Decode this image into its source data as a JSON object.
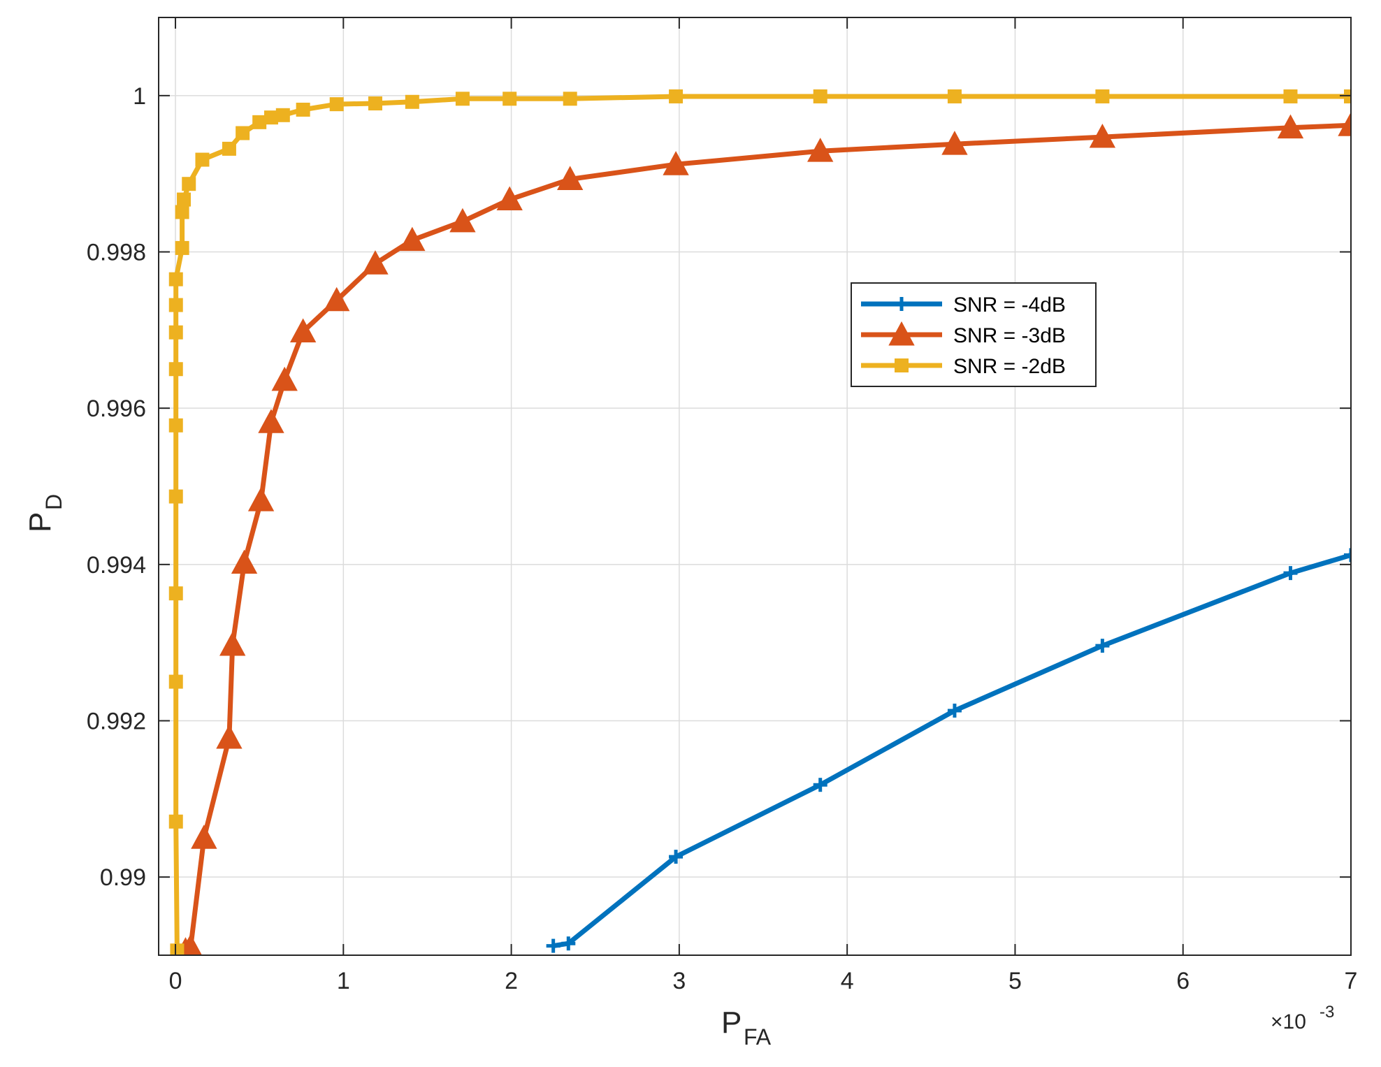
{
  "chart_data": {
    "type": "line",
    "xlabel": "P",
    "xlabel_sub": "FA",
    "ylabel": "P",
    "ylabel_sub": "D",
    "x_exponent_label": "×10",
    "x_exponent_power": "-3",
    "xlim": [
      -0.1,
      7
    ],
    "ylim": [
      0.989,
      1.001
    ],
    "xticks": [
      0,
      1,
      2,
      3,
      4,
      5,
      6,
      7
    ],
    "xtick_labels": [
      "0",
      "1",
      "2",
      "3",
      "4",
      "5",
      "6",
      "7"
    ],
    "yticks": [
      0.99,
      0.992,
      0.994,
      0.996,
      0.998,
      1.0
    ],
    "ytick_labels": [
      "0.99",
      "0.992",
      "0.994",
      "0.996",
      "0.998",
      "1"
    ],
    "grid": true,
    "legend_position": "center-right",
    "series": [
      {
        "name": "SNR = -4dB",
        "color": "#0072BD",
        "marker": "plus",
        "x": [
          2.25,
          2.34,
          2.98,
          3.84,
          4.64,
          5.52,
          6.64,
          7.0
        ],
        "y": [
          0.98912,
          0.98915,
          0.99026,
          0.99118,
          0.99213,
          0.99296,
          0.99389,
          0.99412
        ]
      },
      {
        "name": "SNR = -3dB",
        "color": "#D95319",
        "marker": "triangle",
        "x": [
          0.06,
          0.09,
          0.17,
          0.32,
          0.34,
          0.41,
          0.51,
          0.57,
          0.65,
          0.76,
          0.96,
          1.19,
          1.41,
          1.71,
          1.99,
          2.35,
          2.98,
          3.84,
          4.64,
          5.52,
          6.64,
          7.0
        ],
        "y": [
          0.98906,
          0.9891,
          0.9905,
          0.99178,
          0.99297,
          0.99402,
          0.99482,
          0.99582,
          0.99636,
          0.99698,
          0.99738,
          0.99785,
          0.99815,
          0.99839,
          0.99867,
          0.99893,
          0.99912,
          0.99929,
          0.99938,
          0.99947,
          0.99959,
          0.99962
        ]
      },
      {
        "name": "SNR = -2dB",
        "color": "#EDB120",
        "marker": "square",
        "x": [
          0.01,
          0.003,
          0.003,
          0.003,
          0.003,
          0.003,
          0.003,
          0.003,
          0.003,
          0.003,
          0.04,
          0.04,
          0.05,
          0.08,
          0.16,
          0.32,
          0.4,
          0.5,
          0.57,
          0.64,
          0.76,
          0.96,
          1.19,
          1.41,
          1.71,
          1.99,
          2.35,
          2.98,
          3.84,
          4.64,
          5.52,
          6.64,
          7.0
        ],
        "y": [
          0.98906,
          0.99071,
          0.9925,
          0.99363,
          0.99487,
          0.99578,
          0.9965,
          0.99697,
          0.99732,
          0.99765,
          0.99805,
          0.99851,
          0.99867,
          0.99887,
          0.99918,
          0.99932,
          0.99952,
          0.99966,
          0.99972,
          0.99975,
          0.99982,
          0.99989,
          0.9999,
          0.99992,
          0.99996,
          0.99996,
          0.99996,
          0.99999,
          0.99999,
          0.99999,
          0.99999,
          0.99999,
          0.99999
        ]
      }
    ]
  }
}
